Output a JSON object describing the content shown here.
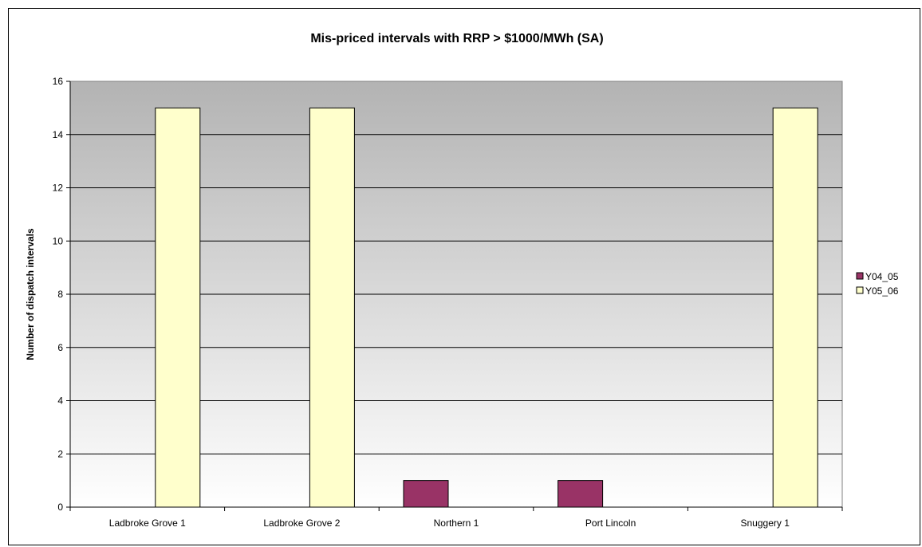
{
  "chart_data": {
    "type": "bar",
    "title": "Mis-priced intervals with RRP > $1000/MWh (SA)",
    "xlabel": "",
    "ylabel": "Number of dispatch intervals",
    "categories": [
      "Ladbroke Grove 1",
      "Ladbroke Grove 2",
      "Northern 1",
      "Port Lincoln",
      "Snuggery 1"
    ],
    "series": [
      {
        "name": "Y04_05",
        "values": [
          0,
          0,
          1,
          1,
          0
        ],
        "color": "#993366"
      },
      {
        "name": "Y05_06",
        "values": [
          15,
          15,
          0,
          0,
          15
        ],
        "color": "#FFFFCC"
      }
    ],
    "ylim": [
      0,
      16
    ],
    "yticks": [
      0,
      2,
      4,
      6,
      8,
      10,
      12,
      14,
      16
    ],
    "grid": true,
    "legend": "right",
    "plot_background": {
      "top": "#B3B3B3",
      "bottom": "#FFFFFF"
    }
  }
}
